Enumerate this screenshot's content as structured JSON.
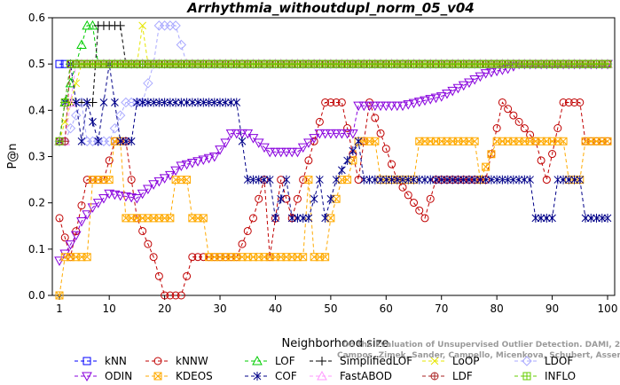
{
  "chart_data": {
    "type": "line",
    "title": "Arrhythmia_withoutdupl_norm_05_v04",
    "xlabel": "Neighborhood size",
    "ylabel": "P@n",
    "xlim": [
      1,
      100
    ],
    "ylim": [
      0,
      0.6
    ],
    "xticks": [
      1,
      10,
      20,
      30,
      40,
      50,
      60,
      70,
      80,
      90,
      100
    ],
    "yticks": [
      0.0,
      0.1,
      0.2,
      0.3,
      0.4,
      0.5,
      0.6
    ],
    "grid": false,
    "legend_position": "bottom",
    "credit": "Campos, Zimek, Sander, Campello, Micenkova, Schubert, Assent, Houle",
    "credit_line2": "On the Evaluation of Unsupervised Outlier Detection. DAMI, 2015.",
    "series": [
      {
        "name": "kNN",
        "color": "#0000ff",
        "marker": "square",
        "points": [
          [
            1,
            0.5
          ],
          [
            2,
            0.5
          ],
          [
            5,
            0.5
          ],
          [
            10,
            0.5
          ],
          [
            20,
            0.5
          ],
          [
            40,
            0.5
          ],
          [
            60,
            0.5
          ],
          [
            80,
            0.5
          ],
          [
            100,
            0.5
          ]
        ]
      },
      {
        "name": "kNNW",
        "color": "#c00000",
        "marker": "circle",
        "points": [
          [
            1,
            0.167
          ],
          [
            3,
            0.083
          ],
          [
            6,
            0.25
          ],
          [
            9,
            0.25
          ],
          [
            11,
            0.333
          ],
          [
            13,
            0.333
          ],
          [
            15,
            0.167
          ],
          [
            18,
            0.083
          ],
          [
            20,
            0.0
          ],
          [
            23,
            0.0
          ],
          [
            25,
            0.083
          ],
          [
            33,
            0.083
          ],
          [
            36,
            0.167
          ],
          [
            38,
            0.25
          ],
          [
            39,
            0.083
          ],
          [
            41,
            0.25
          ],
          [
            43,
            0.167
          ],
          [
            45,
            0.25
          ],
          [
            47,
            0.333
          ],
          [
            49,
            0.417
          ],
          [
            52,
            0.417
          ],
          [
            55,
            0.25
          ],
          [
            57,
            0.417
          ],
          [
            62,
            0.25
          ],
          [
            67,
            0.167
          ],
          [
            69,
            0.25
          ],
          [
            75,
            0.25
          ],
          [
            78,
            0.25
          ],
          [
            81,
            0.417
          ],
          [
            87,
            0.333
          ],
          [
            89,
            0.25
          ],
          [
            92,
            0.417
          ],
          [
            95,
            0.417
          ],
          [
            96,
            0.333
          ],
          [
            100,
            0.333
          ]
        ]
      },
      {
        "name": "LOF",
        "color": "#00cc00",
        "marker": "triangle-up",
        "points": [
          [
            1,
            0.333
          ],
          [
            2,
            0.417
          ],
          [
            4,
            0.5
          ],
          [
            6,
            0.583
          ],
          [
            7,
            0.583
          ],
          [
            8,
            0.5
          ],
          [
            100,
            0.5
          ]
        ]
      },
      {
        "name": "SimplifiedLOF",
        "color": "#000000",
        "marker": "plus",
        "points": [
          [
            1,
            0.333
          ],
          [
            2,
            0.417
          ],
          [
            7,
            0.417
          ],
          [
            8,
            0.583
          ],
          [
            12,
            0.583
          ],
          [
            13,
            0.5
          ],
          [
            100,
            0.5
          ]
        ]
      },
      {
        "name": "LoOP",
        "color": "#e6e600",
        "marker": "x",
        "points": [
          [
            1,
            0.333
          ],
          [
            3,
            0.417
          ],
          [
            5,
            0.5
          ],
          [
            15,
            0.5
          ],
          [
            16,
            0.583
          ],
          [
            17,
            0.5
          ],
          [
            100,
            0.5
          ]
        ]
      },
      {
        "name": "LDOF",
        "color": "#aaaaff",
        "marker": "diamond",
        "points": [
          [
            1,
            0.333
          ],
          [
            2,
            0.333
          ],
          [
            5,
            0.417
          ],
          [
            6,
            0.333
          ],
          [
            10,
            0.333
          ],
          [
            13,
            0.417
          ],
          [
            16,
            0.417
          ],
          [
            18,
            0.5
          ],
          [
            19,
            0.583
          ],
          [
            22,
            0.583
          ],
          [
            24,
            0.5
          ],
          [
            100,
            0.5
          ]
        ]
      },
      {
        "name": "ODIN",
        "color": "#8800dd",
        "marker": "triangle-down",
        "points": [
          [
            1,
            0.075
          ],
          [
            2,
            0.09
          ],
          [
            3,
            0.11
          ],
          [
            4,
            0.13
          ],
          [
            5,
            0.16
          ],
          [
            6,
            0.175
          ],
          [
            7,
            0.19
          ],
          [
            9,
            0.21
          ],
          [
            10,
            0.22
          ],
          [
            15,
            0.21
          ],
          [
            18,
            0.24
          ],
          [
            21,
            0.26
          ],
          [
            23,
            0.28
          ],
          [
            26,
            0.29
          ],
          [
            29,
            0.3
          ],
          [
            31,
            0.33
          ],
          [
            32,
            0.35
          ],
          [
            35,
            0.35
          ],
          [
            37,
            0.33
          ],
          [
            39,
            0.31
          ],
          [
            44,
            0.31
          ],
          [
            46,
            0.33
          ],
          [
            48,
            0.35
          ],
          [
            54,
            0.35
          ],
          [
            55,
            0.41
          ],
          [
            63,
            0.41
          ],
          [
            70,
            0.43
          ],
          [
            75,
            0.46
          ],
          [
            78,
            0.48
          ],
          [
            82,
            0.49
          ],
          [
            84,
            0.5
          ],
          [
            100,
            0.5
          ]
        ]
      },
      {
        "name": "KDEOS",
        "color": "#ffaa00",
        "marker": "square-x",
        "points": [
          [
            1,
            0.0
          ],
          [
            2,
            0.083
          ],
          [
            6,
            0.083
          ],
          [
            7,
            0.25
          ],
          [
            10,
            0.25
          ],
          [
            11,
            0.333
          ],
          [
            12,
            0.333
          ],
          [
            13,
            0.167
          ],
          [
            21,
            0.167
          ],
          [
            22,
            0.25
          ],
          [
            24,
            0.25
          ],
          [
            25,
            0.167
          ],
          [
            27,
            0.167
          ],
          [
            28,
            0.083
          ],
          [
            45,
            0.083
          ],
          [
            46,
            0.25
          ],
          [
            47,
            0.083
          ],
          [
            49,
            0.083
          ],
          [
            50,
            0.167
          ],
          [
            52,
            0.25
          ],
          [
            53,
            0.25
          ],
          [
            55,
            0.333
          ],
          [
            58,
            0.333
          ],
          [
            59,
            0.25
          ],
          [
            65,
            0.25
          ],
          [
            66,
            0.333
          ],
          [
            76,
            0.333
          ],
          [
            77,
            0.25
          ],
          [
            80,
            0.333
          ],
          [
            92,
            0.333
          ],
          [
            93,
            0.25
          ],
          [
            95,
            0.25
          ],
          [
            96,
            0.333
          ],
          [
            100,
            0.333
          ]
        ]
      },
      {
        "name": "COF",
        "color": "#000088",
        "marker": "asterisk",
        "points": [
          [
            1,
            0.333
          ],
          [
            2,
            0.417
          ],
          [
            3,
            0.5
          ],
          [
            4,
            0.417
          ],
          [
            5,
            0.333
          ],
          [
            6,
            0.417
          ],
          [
            8,
            0.333
          ],
          [
            9,
            0.417
          ],
          [
            10,
            0.5
          ],
          [
            11,
            0.417
          ],
          [
            12,
            0.333
          ],
          [
            14,
            0.333
          ],
          [
            15,
            0.417
          ],
          [
            33,
            0.417
          ],
          [
            34,
            0.333
          ],
          [
            35,
            0.25
          ],
          [
            39,
            0.25
          ],
          [
            40,
            0.167
          ],
          [
            42,
            0.25
          ],
          [
            43,
            0.167
          ],
          [
            46,
            0.167
          ],
          [
            48,
            0.25
          ],
          [
            49,
            0.167
          ],
          [
            51,
            0.25
          ],
          [
            55,
            0.333
          ],
          [
            56,
            0.25
          ],
          [
            86,
            0.25
          ],
          [
            87,
            0.167
          ],
          [
            90,
            0.167
          ],
          [
            91,
            0.25
          ],
          [
            95,
            0.25
          ],
          [
            96,
            0.167
          ],
          [
            100,
            0.167
          ]
        ]
      },
      {
        "name": "FastABOD",
        "color": "#ff99ff",
        "marker": "triangle-up-open",
        "points": [
          [
            1,
            0.333
          ],
          [
            2,
            0.333
          ],
          [
            4,
            0.5
          ],
          [
            100,
            0.5
          ]
        ]
      },
      {
        "name": "LDF",
        "color": "#aa2222",
        "marker": "circle-plus",
        "points": [
          [
            1,
            0.333
          ],
          [
            2,
            0.333
          ],
          [
            3,
            0.5
          ],
          [
            100,
            0.5
          ]
        ]
      },
      {
        "name": "INFLO",
        "color": "#66cc00",
        "marker": "square-cross",
        "points": [
          [
            1,
            0.333
          ],
          [
            2,
            0.417
          ],
          [
            3,
            0.5
          ],
          [
            100,
            0.5
          ]
        ]
      }
    ]
  },
  "legend": {
    "rows": [
      [
        "kNN",
        "kNNW",
        "LOF",
        "SimplifiedLOF",
        "LoOP",
        "LDOF"
      ],
      [
        "ODIN",
        "KDEOS",
        "COF",
        "FastABOD",
        "LDF",
        "INFLO"
      ]
    ]
  }
}
